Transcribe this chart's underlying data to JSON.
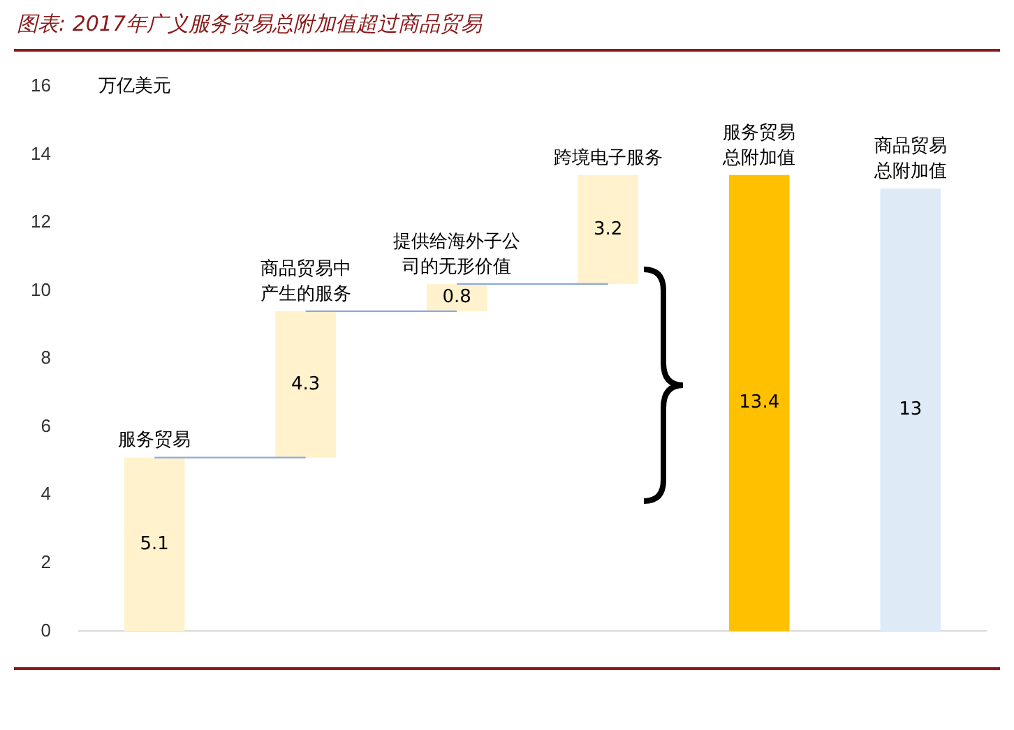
{
  "chart_data": {
    "type": "bar",
    "title": "图表: 2017年广义服务贸易总附加值超过商品贸易",
    "ylabel": "万亿美元",
    "categories": [
      "服务贸易",
      "商品贸易中产生的服务",
      "提供给海外子公司的无形价值",
      "跨境电子服务",
      "服务贸易总附加值",
      "商品贸易总附加值"
    ],
    "series": [
      {
        "colors": [
          "#fff2cc",
          "#fff2cc",
          "#fff2cc",
          "#fff2cc",
          "#ffc000",
          "#deebf7"
        ],
        "values": [
          5.1,
          4.3,
          0.8,
          3.2,
          13.4,
          13
        ],
        "base": [
          0,
          5.1,
          9.4,
          10.2,
          0,
          0
        ],
        "value_labels": [
          "5.1",
          "4.3",
          "0.8",
          "3.2",
          "13.4",
          "13"
        ]
      },
      {
        "type": "line",
        "color": "#8faadc",
        "values": [
          5.1,
          5.1,
          null,
          null,
          null,
          null
        ]
      },
      {
        "type": "line",
        "color": "#8faadc",
        "values": [
          null,
          9.4,
          9.4,
          null,
          null,
          null
        ]
      },
      {
        "type": "line",
        "color": "#8faadc",
        "values": [
          null,
          null,
          10.2,
          10.2,
          null,
          null
        ]
      }
    ],
    "ylim": [
      0,
      16
    ],
    "yticks": [
      0,
      2,
      4,
      6,
      8,
      10,
      12,
      14,
      16
    ],
    "tick_labels": "y",
    "grid": false,
    "legend": false,
    "marker": "none",
    "line_style": "solid"
  }
}
